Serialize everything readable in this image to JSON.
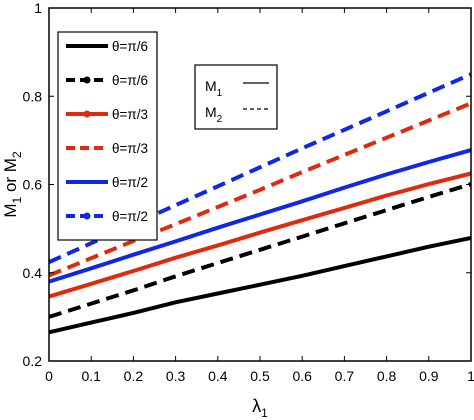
{
  "chart_data": {
    "type": "line",
    "xlabel": "λ",
    "xlabel_sub": "1",
    "ylabel_parts": [
      "M",
      "1",
      " or M",
      "2"
    ],
    "xlim": [
      0,
      1
    ],
    "ylim": [
      0.2,
      1
    ],
    "x_ticks": [
      0,
      0.1,
      0.2,
      0.3,
      0.4,
      0.5,
      0.6,
      0.7,
      0.8,
      0.9,
      1
    ],
    "x_tick_labels": [
      "0",
      "0.1",
      "0.2",
      "0.3",
      "0.4",
      "0.5",
      "0.6",
      "0.7",
      "0.8",
      "0.9",
      "1"
    ],
    "y_ticks": [
      0.2,
      0.4,
      0.6,
      0.8,
      1
    ],
    "y_tick_labels": [
      "0.2",
      "0.4",
      "0.6",
      "0.8",
      "1"
    ],
    "legend_main_position": "top-left",
    "legend_style_position": "upper-center",
    "series": [
      {
        "name": "θ=π/6",
        "color": "#000000",
        "dash": "solid",
        "marker": false,
        "x": [
          0,
          0.1,
          0.2,
          0.3,
          0.4,
          0.5,
          0.6,
          0.7,
          0.8,
          0.9,
          1
        ],
        "y": [
          0.265,
          0.287,
          0.309,
          0.333,
          0.353,
          0.373,
          0.393,
          0.415,
          0.437,
          0.459,
          0.479
        ]
      },
      {
        "name": "θ=π/6",
        "color": "#000000",
        "dash": "dashed",
        "marker": true,
        "x": [
          0,
          0.1,
          0.2,
          0.3,
          0.4,
          0.5,
          0.6,
          0.7,
          0.8,
          0.9,
          1
        ],
        "y": [
          0.3,
          0.33,
          0.36,
          0.392,
          0.422,
          0.452,
          0.482,
          0.512,
          0.542,
          0.572,
          0.601
        ]
      },
      {
        "name": "θ=π/3",
        "color": "#e02a0e",
        "dash": "solid",
        "marker": true,
        "x": [
          0,
          0.1,
          0.2,
          0.3,
          0.4,
          0.5,
          0.6,
          0.7,
          0.8,
          0.9,
          1
        ],
        "y": [
          0.346,
          0.375,
          0.404,
          0.434,
          0.462,
          0.491,
          0.519,
          0.547,
          0.575,
          0.601,
          0.625
        ]
      },
      {
        "name": "θ=π/3",
        "color": "#e02a0e",
        "dash": "dashed",
        "marker": false,
        "x": [
          0,
          0.1,
          0.2,
          0.3,
          0.4,
          0.5,
          0.6,
          0.7,
          0.8,
          0.9,
          1
        ],
        "y": [
          0.394,
          0.433,
          0.472,
          0.51,
          0.549,
          0.588,
          0.628,
          0.667,
          0.706,
          0.745,
          0.784
        ]
      },
      {
        "name": "θ=π/2",
        "color": "#1026e8",
        "dash": "solid",
        "marker": false,
        "x": [
          0,
          0.1,
          0.2,
          0.3,
          0.4,
          0.5,
          0.6,
          0.7,
          0.8,
          0.9,
          1
        ],
        "y": [
          0.38,
          0.41,
          0.441,
          0.471,
          0.502,
          0.532,
          0.562,
          0.593,
          0.623,
          0.651,
          0.678
        ]
      },
      {
        "name": "θ=π/2",
        "color": "#1026e8",
        "dash": "dashed",
        "marker": true,
        "x": [
          0,
          0.1,
          0.2,
          0.3,
          0.4,
          0.5,
          0.6,
          0.7,
          0.8,
          0.9,
          1
        ],
        "y": [
          0.424,
          0.467,
          0.51,
          0.553,
          0.596,
          0.639,
          0.682,
          0.724,
          0.766,
          0.808,
          0.85
        ]
      }
    ],
    "style_legend": [
      {
        "label": "M",
        "sub": "1",
        "dash": "solid"
      },
      {
        "label": "M",
        "sub": "2",
        "dash": "dashed"
      }
    ]
  }
}
